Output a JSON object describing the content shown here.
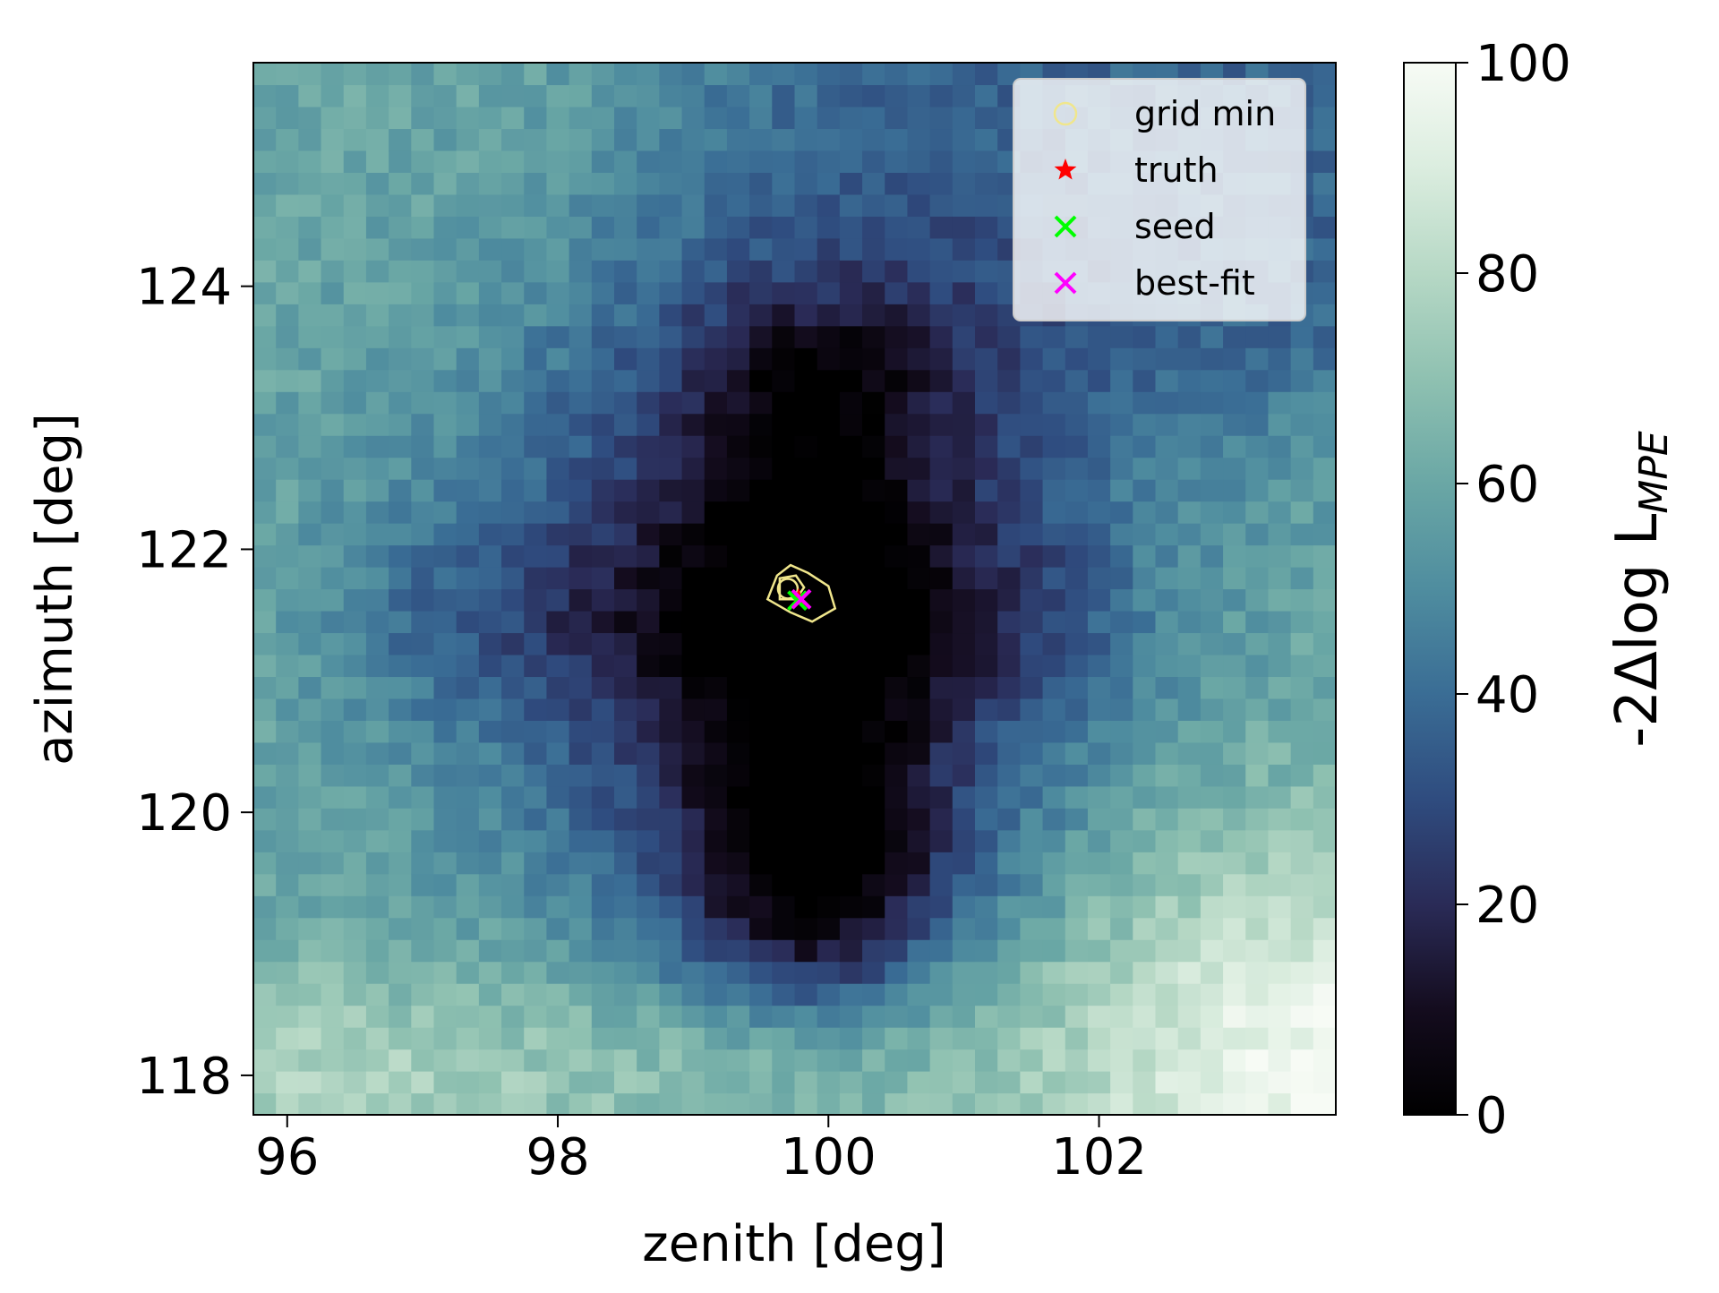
{
  "chart_data": {
    "type": "heatmap",
    "title": "",
    "xlabel": "zenith [deg]",
    "ylabel": "azimuth [deg]",
    "xlim": [
      95.75,
      103.75
    ],
    "ylim": [
      117.7,
      125.7
    ],
    "x_ticks": [
      96,
      98,
      100,
      102
    ],
    "x_tick_labels": [
      "96",
      "98",
      "100",
      "102"
    ],
    "y_ticks": [
      118,
      120,
      122,
      124
    ],
    "y_tick_labels": [
      "118",
      "120",
      "122",
      "124"
    ],
    "grid": false,
    "colormap": {
      "name": "cubehelix-teal",
      "stops": [
        [
          0,
          "#000000"
        ],
        [
          10,
          "#140c1e"
        ],
        [
          20,
          "#2a2b57"
        ],
        [
          30,
          "#2f4c7f"
        ],
        [
          40,
          "#3a6d95"
        ],
        [
          50,
          "#4f8d9f"
        ],
        [
          60,
          "#6aa7a5"
        ],
        [
          70,
          "#8fc1b1"
        ],
        [
          80,
          "#b6d8c5"
        ],
        [
          90,
          "#dbeddf"
        ],
        [
          100,
          "#f7fbf5"
        ]
      ]
    },
    "colorbar": {
      "label": "-2Δlog L",
      "label_subscript": "MPE",
      "range": [
        0,
        100
      ],
      "ticks": [
        0,
        20,
        40,
        60,
        80,
        100
      ],
      "tick_labels": [
        "0",
        "20",
        "40",
        "60",
        "80",
        "100"
      ]
    },
    "legend": {
      "placement": "top-right",
      "entries": [
        {
          "label": "grid min",
          "marker": "circle",
          "color": "#f0e68c"
        },
        {
          "label": "truth",
          "marker": "star",
          "color": "#ff0000"
        },
        {
          "label": "seed",
          "marker": "x",
          "color": "#00ff00"
        },
        {
          "label": "best-fit",
          "marker": "x",
          "color": "#ff00ff"
        }
      ]
    },
    "points": {
      "grid_min": {
        "x": 99.7,
        "y": 121.7
      },
      "truth": {
        "x": 99.78,
        "y": 121.63
      },
      "seed": {
        "x": 99.77,
        "y": 121.61
      },
      "best_fit": {
        "x": 99.8,
        "y": 121.62
      }
    },
    "contours": [
      {
        "level": "inner",
        "color": "#f0e68c",
        "path": [
          [
            99.64,
            121.62
          ],
          [
            99.64,
            121.78
          ],
          [
            99.76,
            121.8
          ],
          [
            99.82,
            121.71
          ],
          [
            99.76,
            121.62
          ]
        ]
      },
      {
        "level": "outer",
        "color": "#f0e68c",
        "path": [
          [
            99.55,
            121.62
          ],
          [
            99.62,
            121.8
          ],
          [
            99.72,
            121.88
          ],
          [
            99.85,
            121.82
          ],
          [
            100.0,
            121.72
          ],
          [
            100.05,
            121.55
          ],
          [
            99.88,
            121.45
          ],
          [
            99.72,
            121.52
          ]
        ]
      }
    ],
    "field_model": {
      "description": "approximate shape of the -2Δlog L surface",
      "cells": {
        "x_count": 48,
        "y_count": 48
      },
      "baseline": 60,
      "components": [
        {
          "kind": "well",
          "x": 99.7,
          "y": 121.6,
          "sx": 1.6,
          "sy": 1.6,
          "depth": 50
        },
        {
          "kind": "ridge_vertical",
          "x": 99.9,
          "y0": 119.0,
          "y1": 123.3,
          "sx": 0.6,
          "depth": 20
        },
        {
          "kind": "ridge_horizontal",
          "y": 121.5,
          "x0": 97.0,
          "x1": 101.5,
          "sy": 0.5,
          "depth": 10
        },
        {
          "kind": "well",
          "x": 99.9,
          "y": 119.6,
          "sx": 0.8,
          "sy": 0.6,
          "depth": 30
        },
        {
          "kind": "band",
          "y_min": 123.0,
          "x_min": 99.0,
          "depth": 22
        },
        {
          "kind": "corner_bright",
          "x": 103.8,
          "y": 118.0,
          "sx": 1.6,
          "sy": 1.3,
          "rise": 38
        },
        {
          "kind": "edge_bright",
          "x": 95.75,
          "y": 118.0,
          "sx": 3.0,
          "sy": 0.6,
          "rise": 18
        }
      ]
    }
  }
}
